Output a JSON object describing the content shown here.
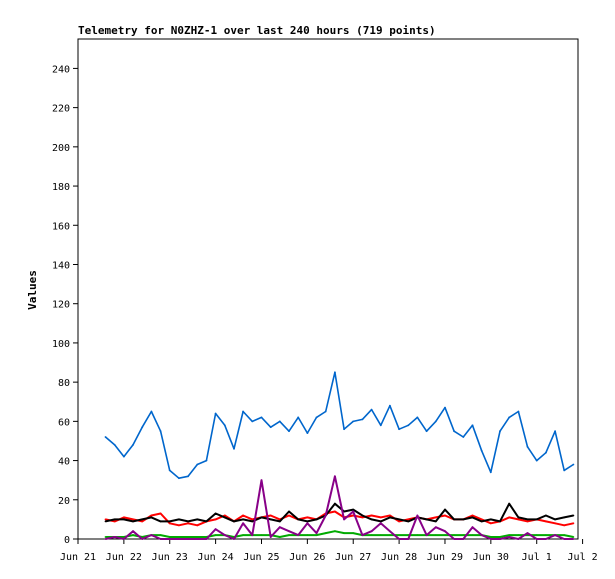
{
  "chart_data": {
    "type": "line",
    "title": "Telemetry for N0ZHZ-1 over last 240 hours (719 points)",
    "xlabel": "",
    "ylabel": "Values",
    "ylim": [
      0,
      255
    ],
    "yticks": [
      0,
      20,
      40,
      60,
      80,
      100,
      120,
      140,
      160,
      180,
      200,
      220,
      240
    ],
    "xticks": [
      "Jun 21",
      "Jun 22",
      "Jun 23",
      "Jun 24",
      "Jun 25",
      "Jun 26",
      "Jun 27",
      "Jun 28",
      "Jun 29",
      "Jun 30",
      "Jul 1",
      "Jul 2"
    ],
    "x_unit": "days since Jun 21 00:00",
    "xlim": [
      0,
      10.9
    ],
    "grid": false,
    "series": [
      {
        "color": "#0066cc",
        "x": [
          0.6,
          0.8,
          1.0,
          1.2,
          1.4,
          1.6,
          1.8,
          2.0,
          2.2,
          2.4,
          2.6,
          2.8,
          3.0,
          3.2,
          3.4,
          3.6,
          3.8,
          4.0,
          4.2,
          4.4,
          4.6,
          4.8,
          5.0,
          5.2,
          5.4,
          5.6,
          5.8,
          6.0,
          6.2,
          6.4,
          6.6,
          6.8,
          7.0,
          7.2,
          7.4,
          7.6,
          7.8,
          8.0,
          8.2,
          8.4,
          8.6,
          8.8,
          9.0,
          9.2,
          9.4,
          9.6,
          9.8,
          10.0,
          10.2,
          10.4,
          10.6,
          10.8
        ],
        "values": [
          52,
          48,
          42,
          48,
          57,
          65,
          55,
          35,
          31,
          32,
          38,
          40,
          64,
          58,
          46,
          65,
          60,
          62,
          57,
          60,
          55,
          62,
          54,
          62,
          65,
          85,
          56,
          60,
          61,
          66,
          58,
          68,
          56,
          58,
          62,
          55,
          60,
          67,
          55,
          52,
          58,
          45,
          34,
          55,
          62,
          65,
          47,
          40,
          44,
          55,
          35,
          38
        ]
      },
      {
        "color": "#ff0000",
        "x": [
          0.6,
          0.8,
          1.0,
          1.2,
          1.4,
          1.6,
          1.8,
          2.0,
          2.2,
          2.4,
          2.6,
          2.8,
          3.0,
          3.2,
          3.4,
          3.6,
          3.8,
          4.0,
          4.2,
          4.4,
          4.6,
          4.8,
          5.0,
          5.2,
          5.4,
          5.6,
          5.8,
          6.0,
          6.2,
          6.4,
          6.6,
          6.8,
          7.0,
          7.2,
          7.4,
          7.6,
          7.8,
          8.0,
          8.2,
          8.4,
          8.6,
          8.8,
          9.0,
          9.2,
          9.4,
          9.6,
          9.8,
          10.0,
          10.2,
          10.4,
          10.6,
          10.8
        ],
        "values": [
          10,
          9,
          11,
          10,
          9,
          12,
          13,
          8,
          7,
          8,
          7,
          9,
          10,
          12,
          9,
          12,
          10,
          11,
          12,
          10,
          12,
          10,
          11,
          10,
          13,
          14,
          11,
          12,
          11,
          12,
          11,
          12,
          9,
          10,
          11,
          10,
          11,
          12,
          10,
          10,
          12,
          10,
          8,
          9,
          11,
          10,
          9,
          10,
          9,
          8,
          7,
          8
        ]
      },
      {
        "color": "#000000",
        "x": [
          0.6,
          0.8,
          1.0,
          1.2,
          1.4,
          1.6,
          1.8,
          2.0,
          2.2,
          2.4,
          2.6,
          2.8,
          3.0,
          3.2,
          3.4,
          3.6,
          3.8,
          4.0,
          4.2,
          4.4,
          4.6,
          4.8,
          5.0,
          5.2,
          5.4,
          5.6,
          5.8,
          6.0,
          6.2,
          6.4,
          6.6,
          6.8,
          7.0,
          7.2,
          7.4,
          7.6,
          7.8,
          8.0,
          8.2,
          8.4,
          8.6,
          8.8,
          9.0,
          9.2,
          9.4,
          9.6,
          9.8,
          10.0,
          10.2,
          10.4,
          10.6,
          10.8
        ],
        "values": [
          9,
          10,
          10,
          9,
          10,
          11,
          9,
          9,
          10,
          9,
          10,
          9,
          13,
          11,
          9,
          10,
          9,
          11,
          10,
          9,
          14,
          10,
          9,
          10,
          12,
          18,
          14,
          15,
          12,
          10,
          9,
          11,
          10,
          9,
          11,
          10,
          9,
          15,
          10,
          10,
          11,
          9,
          10,
          9,
          18,
          11,
          10,
          10,
          12,
          10,
          11,
          12
        ]
      },
      {
        "color": "#00aa00",
        "x": [
          0.6,
          0.8,
          1.0,
          1.2,
          1.4,
          1.6,
          1.8,
          2.0,
          2.2,
          2.4,
          2.6,
          2.8,
          3.0,
          3.2,
          3.4,
          3.6,
          3.8,
          4.0,
          4.2,
          4.4,
          4.6,
          4.8,
          5.0,
          5.2,
          5.4,
          5.6,
          5.8,
          6.0,
          6.2,
          6.4,
          6.6,
          6.8,
          7.0,
          7.2,
          7.4,
          7.6,
          7.8,
          8.0,
          8.2,
          8.4,
          8.6,
          8.8,
          9.0,
          9.2,
          9.4,
          9.6,
          9.8,
          10.0,
          10.2,
          10.4,
          10.6,
          10.8
        ],
        "values": [
          1,
          1,
          1,
          2,
          1,
          2,
          2,
          1,
          1,
          1,
          1,
          1,
          2,
          2,
          1,
          2,
          2,
          2,
          2,
          1,
          2,
          2,
          2,
          2,
          3,
          4,
          3,
          3,
          2,
          2,
          2,
          2,
          2,
          2,
          2,
          2,
          2,
          2,
          2,
          2,
          2,
          2,
          1,
          1,
          2,
          2,
          2,
          2,
          2,
          2,
          2,
          1
        ]
      },
      {
        "color": "#880088",
        "x": [
          0.6,
          0.8,
          1.0,
          1.2,
          1.4,
          1.6,
          1.8,
          2.0,
          2.2,
          2.4,
          2.6,
          2.8,
          3.0,
          3.2,
          3.4,
          3.6,
          3.8,
          4.0,
          4.2,
          4.4,
          4.6,
          4.8,
          5.0,
          5.2,
          5.4,
          5.6,
          5.8,
          6.0,
          6.2,
          6.4,
          6.6,
          6.8,
          7.0,
          7.2,
          7.4,
          7.6,
          7.8,
          8.0,
          8.2,
          8.4,
          8.6,
          8.8,
          9.0,
          9.2,
          9.4,
          9.6,
          9.8,
          10.0,
          10.2,
          10.4,
          10.6,
          10.8
        ],
        "values": [
          0,
          1,
          0,
          4,
          0,
          2,
          0,
          0,
          0,
          0,
          0,
          0,
          5,
          2,
          0,
          8,
          2,
          30,
          1,
          6,
          4,
          2,
          8,
          3,
          12,
          32,
          10,
          14,
          2,
          4,
          8,
          4,
          0,
          0,
          12,
          2,
          6,
          4,
          0,
          0,
          6,
          2,
          0,
          0,
          1,
          0,
          3,
          0,
          0,
          2,
          0,
          0
        ]
      }
    ]
  }
}
